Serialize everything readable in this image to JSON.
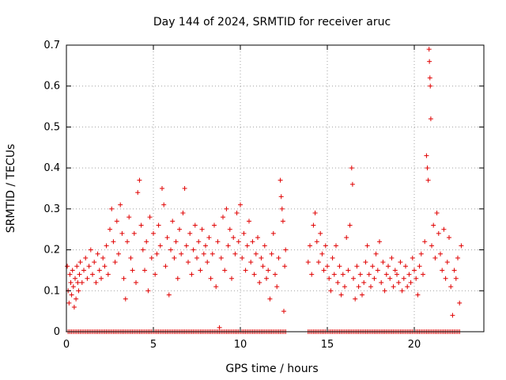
{
  "chart_data": {
    "type": "scatter",
    "title": "Day 144 of 2024, SRMTID for receiver aruc",
    "xlabel": "GPS time / hours",
    "ylabel": "SRMTID / TECUs",
    "xlim": [
      0,
      24
    ],
    "ylim": [
      0,
      0.7
    ],
    "xticks": [
      0,
      5,
      10,
      15,
      20
    ],
    "yticks": [
      0,
      0.1,
      0.2,
      0.3,
      0.4,
      0.5,
      0.6,
      0.7
    ],
    "xtick_labels": [
      "0",
      "5",
      "10",
      "15",
      "20"
    ],
    "ytick_labels": [
      "0",
      "0.1",
      "0.2",
      "0.3",
      "0.4",
      "0.5",
      "0.6",
      "0.7"
    ],
    "grid": true,
    "marker": "+",
    "color": "#e00000",
    "series": [
      {
        "name": "SRMTID",
        "points": [
          [
            0.05,
            0.16
          ],
          [
            0.1,
            0.1
          ],
          [
            0.15,
            0.07
          ],
          [
            0.2,
            0.14
          ],
          [
            0.25,
            0.12
          ],
          [
            0.3,
            0.09
          ],
          [
            0.35,
            0.15
          ],
          [
            0.4,
            0.11
          ],
          [
            0.45,
            0.06
          ],
          [
            0.5,
            0.13
          ],
          [
            0.55,
            0.08
          ],
          [
            0.6,
            0.16
          ],
          [
            0.65,
            0.12
          ],
          [
            0.7,
            0.1
          ],
          [
            0.75,
            0.14
          ],
          [
            0.8,
            0.17
          ],
          [
            0.9,
            0.12
          ],
          [
            1.0,
            0.15
          ],
          [
            1.1,
            0.18
          ],
          [
            1.2,
            0.13
          ],
          [
            1.3,
            0.16
          ],
          [
            1.4,
            0.2
          ],
          [
            1.5,
            0.14
          ],
          [
            1.6,
            0.17
          ],
          [
            1.7,
            0.12
          ],
          [
            1.8,
            0.19
          ],
          [
            1.9,
            0.15
          ],
          [
            2.0,
            0.13
          ],
          [
            2.1,
            0.18
          ],
          [
            2.2,
            0.16
          ],
          [
            2.3,
            0.21
          ],
          [
            2.4,
            0.14
          ],
          [
            2.5,
            0.25
          ],
          [
            2.6,
            0.3
          ],
          [
            2.7,
            0.22
          ],
          [
            2.8,
            0.17
          ],
          [
            2.9,
            0.27
          ],
          [
            3.0,
            0.19
          ],
          [
            3.1,
            0.31
          ],
          [
            3.2,
            0.24
          ],
          [
            3.3,
            0.13
          ],
          [
            3.4,
            0.08
          ],
          [
            3.5,
            0.22
          ],
          [
            3.6,
            0.28
          ],
          [
            3.7,
            0.18
          ],
          [
            3.8,
            0.15
          ],
          [
            3.9,
            0.24
          ],
          [
            4.0,
            0.12
          ],
          [
            4.1,
            0.34
          ],
          [
            4.2,
            0.37
          ],
          [
            4.3,
            0.26
          ],
          [
            4.4,
            0.2
          ],
          [
            4.5,
            0.15
          ],
          [
            4.6,
            0.22
          ],
          [
            4.7,
            0.1
          ],
          [
            4.8,
            0.28
          ],
          [
            4.9,
            0.18
          ],
          [
            5.0,
            0.24
          ],
          [
            5.1,
            0.14
          ],
          [
            5.2,
            0.19
          ],
          [
            5.3,
            0.26
          ],
          [
            5.4,
            0.21
          ],
          [
            5.5,
            0.35
          ],
          [
            5.6,
            0.31
          ],
          [
            5.7,
            0.16
          ],
          [
            5.8,
            0.23
          ],
          [
            5.9,
            0.09
          ],
          [
            6.0,
            0.2
          ],
          [
            6.1,
            0.27
          ],
          [
            6.2,
            0.18
          ],
          [
            6.3,
            0.22
          ],
          [
            6.4,
            0.13
          ],
          [
            6.5,
            0.25
          ],
          [
            6.6,
            0.19
          ],
          [
            6.7,
            0.29
          ],
          [
            6.8,
            0.35
          ],
          [
            6.9,
            0.21
          ],
          [
            7.0,
            0.17
          ],
          [
            7.1,
            0.24
          ],
          [
            7.2,
            0.14
          ],
          [
            7.3,
            0.2
          ],
          [
            7.4,
            0.26
          ],
          [
            7.5,
            0.18
          ],
          [
            7.6,
            0.22
          ],
          [
            7.7,
            0.15
          ],
          [
            7.8,
            0.25
          ],
          [
            7.9,
            0.19
          ],
          [
            8.0,
            0.21
          ],
          [
            8.1,
            0.17
          ],
          [
            8.2,
            0.23
          ],
          [
            8.3,
            0.13
          ],
          [
            8.4,
            0.19
          ],
          [
            8.5,
            0.26
          ],
          [
            8.6,
            0.11
          ],
          [
            8.7,
            0.22
          ],
          [
            8.8,
            0.01
          ],
          [
            8.9,
            0.18
          ],
          [
            9.0,
            0.28
          ],
          [
            9.1,
            0.15
          ],
          [
            9.2,
            0.3
          ],
          [
            9.3,
            0.21
          ],
          [
            9.4,
            0.25
          ],
          [
            9.5,
            0.13
          ],
          [
            9.6,
            0.23
          ],
          [
            9.7,
            0.19
          ],
          [
            9.8,
            0.29
          ],
          [
            9.9,
            0.22
          ],
          [
            10.0,
            0.31
          ],
          [
            10.1,
            0.18
          ],
          [
            10.2,
            0.24
          ],
          [
            10.3,
            0.15
          ],
          [
            10.4,
            0.21
          ],
          [
            10.5,
            0.27
          ],
          [
            10.6,
            0.17
          ],
          [
            10.7,
            0.22
          ],
          [
            10.8,
            0.14
          ],
          [
            10.9,
            0.19
          ],
          [
            11.0,
            0.23
          ],
          [
            11.1,
            0.12
          ],
          [
            11.2,
            0.18
          ],
          [
            11.3,
            0.16
          ],
          [
            11.4,
            0.21
          ],
          [
            11.5,
            0.13
          ],
          [
            11.6,
            0.15
          ],
          [
            11.7,
            0.08
          ],
          [
            11.8,
            0.19
          ],
          [
            11.9,
            0.24
          ],
          [
            12.0,
            0.14
          ],
          [
            12.1,
            0.11
          ],
          [
            12.2,
            0.18
          ],
          [
            12.3,
            0.37
          ],
          [
            12.35,
            0.33
          ],
          [
            12.4,
            0.3
          ],
          [
            12.45,
            0.27
          ],
          [
            12.5,
            0.05
          ],
          [
            12.55,
            0.16
          ],
          [
            12.6,
            0.2
          ],
          [
            13.9,
            0.17
          ],
          [
            14.0,
            0.21
          ],
          [
            14.1,
            0.14
          ],
          [
            14.2,
            0.26
          ],
          [
            14.3,
            0.29
          ],
          [
            14.4,
            0.22
          ],
          [
            14.5,
            0.17
          ],
          [
            14.6,
            0.24
          ],
          [
            14.7,
            0.19
          ],
          [
            14.8,
            0.15
          ],
          [
            14.9,
            0.21
          ],
          [
            15.0,
            0.16
          ],
          [
            15.1,
            0.13
          ],
          [
            15.2,
            0.1
          ],
          [
            15.3,
            0.18
          ],
          [
            15.4,
            0.14
          ],
          [
            15.5,
            0.21
          ],
          [
            15.6,
            0.12
          ],
          [
            15.7,
            0.16
          ],
          [
            15.8,
            0.09
          ],
          [
            15.9,
            0.14
          ],
          [
            16.0,
            0.11
          ],
          [
            16.1,
            0.23
          ],
          [
            16.2,
            0.15
          ],
          [
            16.3,
            0.26
          ],
          [
            16.4,
            0.4
          ],
          [
            16.45,
            0.36
          ],
          [
            16.5,
            0.13
          ],
          [
            16.6,
            0.08
          ],
          [
            16.7,
            0.16
          ],
          [
            16.8,
            0.11
          ],
          [
            16.9,
            0.14
          ],
          [
            17.0,
            0.09
          ],
          [
            17.1,
            0.12
          ],
          [
            17.2,
            0.17
          ],
          [
            17.3,
            0.21
          ],
          [
            17.4,
            0.14
          ],
          [
            17.5,
            0.11
          ],
          [
            17.6,
            0.16
          ],
          [
            17.7,
            0.13
          ],
          [
            17.8,
            0.19
          ],
          [
            17.9,
            0.15
          ],
          [
            18.0,
            0.22
          ],
          [
            18.1,
            0.12
          ],
          [
            18.2,
            0.17
          ],
          [
            18.3,
            0.1
          ],
          [
            18.4,
            0.14
          ],
          [
            18.5,
            0.16
          ],
          [
            18.6,
            0.13
          ],
          [
            18.7,
            0.18
          ],
          [
            18.8,
            0.11
          ],
          [
            18.9,
            0.15
          ],
          [
            19.0,
            0.14
          ],
          [
            19.1,
            0.12
          ],
          [
            19.2,
            0.17
          ],
          [
            19.3,
            0.1
          ],
          [
            19.4,
            0.13
          ],
          [
            19.5,
            0.16
          ],
          [
            19.6,
            0.11
          ],
          [
            19.7,
            0.14
          ],
          [
            19.8,
            0.12
          ],
          [
            19.9,
            0.18
          ],
          [
            20.0,
            0.15
          ],
          [
            20.1,
            0.13
          ],
          [
            20.2,
            0.09
          ],
          [
            20.3,
            0.16
          ],
          [
            20.4,
            0.19
          ],
          [
            20.5,
            0.14
          ],
          [
            20.6,
            0.22
          ],
          [
            20.7,
            0.43
          ],
          [
            20.75,
            0.4
          ],
          [
            20.8,
            0.37
          ],
          [
            20.85,
            0.69
          ],
          [
            20.87,
            0.66
          ],
          [
            20.9,
            0.62
          ],
          [
            20.92,
            0.6
          ],
          [
            20.95,
            0.52
          ],
          [
            21.0,
            0.21
          ],
          [
            21.1,
            0.26
          ],
          [
            21.2,
            0.18
          ],
          [
            21.3,
            0.29
          ],
          [
            21.4,
            0.24
          ],
          [
            21.5,
            0.19
          ],
          [
            21.6,
            0.15
          ],
          [
            21.7,
            0.25
          ],
          [
            21.8,
            0.13
          ],
          [
            21.9,
            0.17
          ],
          [
            22.0,
            0.23
          ],
          [
            22.1,
            0.11
          ],
          [
            22.2,
            0.04
          ],
          [
            22.3,
            0.15
          ],
          [
            22.4,
            0.13
          ],
          [
            22.5,
            0.18
          ],
          [
            22.6,
            0.07
          ],
          [
            22.7,
            0.21
          ]
        ]
      }
    ]
  }
}
